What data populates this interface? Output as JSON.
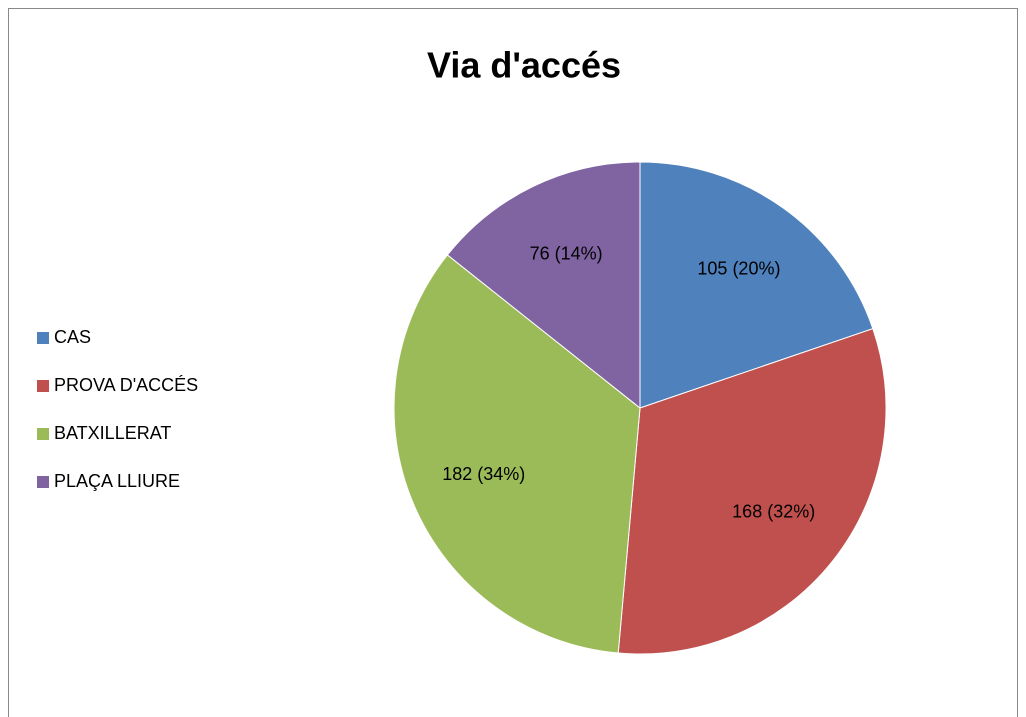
{
  "chart_data": {
    "type": "pie",
    "title": "Via d'accés",
    "categories": [
      "CAS",
      "PROVA D'ACCÉS",
      "BATXILLERAT",
      "PLAÇA LLIURE"
    ],
    "values": [
      105,
      168,
      182,
      76
    ],
    "value_labels": [
      "105 (20%)",
      "168 (32%)",
      "182 (34%)",
      "76 (14%)"
    ],
    "colors": [
      "#4f81bd",
      "#c0504d",
      "#9bbb59",
      "#8064a2"
    ],
    "legend": "left"
  }
}
